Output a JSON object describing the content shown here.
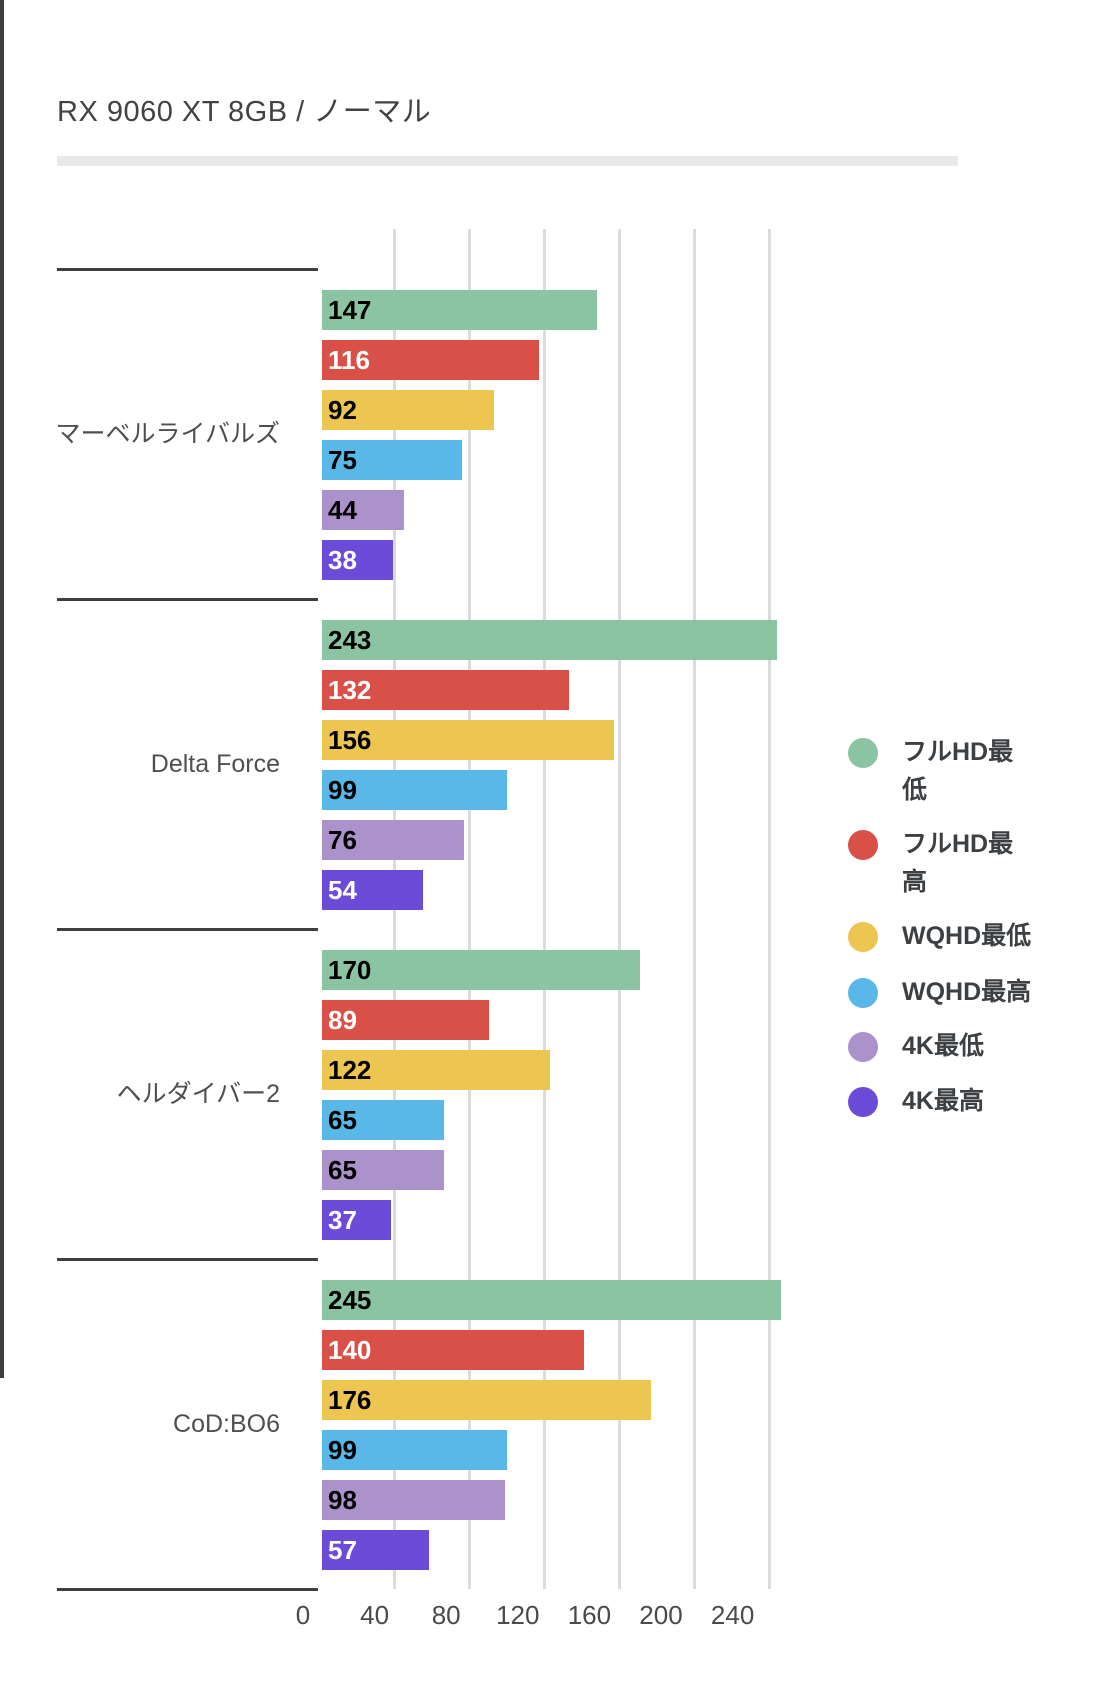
{
  "title": "RX 9060 XT 8GB / ノーマル",
  "chart_data": {
    "type": "bar",
    "orientation": "horizontal",
    "title": "RX 9060 XT 8GB / ノーマル",
    "categories": [
      "マーベルライバルズ",
      "Delta Force",
      "ヘルダイバー2",
      "CoD:BO6"
    ],
    "series": [
      {
        "name": "フルHD最低",
        "color": "#8BC4A3",
        "label_color": "#000000",
        "values": [
          147,
          243,
          170,
          245
        ]
      },
      {
        "name": "フルHD最高",
        "color": "#D95049",
        "label_color": "#FFFFFF",
        "values": [
          116,
          132,
          89,
          140
        ]
      },
      {
        "name": "WQHD最低",
        "color": "#EDC551",
        "label_color": "#000000",
        "values": [
          92,
          156,
          122,
          176
        ]
      },
      {
        "name": "WQHD最高",
        "color": "#5AB8E8",
        "label_color": "#000000",
        "values": [
          75,
          99,
          65,
          99
        ]
      },
      {
        "name": "4K最低",
        "color": "#AB92CB",
        "label_color": "#000000",
        "values": [
          44,
          76,
          65,
          98
        ]
      },
      {
        "name": "4K最高",
        "color": "#6B4BD8",
        "label_color": "#FFFFFF",
        "values": [
          38,
          54,
          37,
          57
        ]
      }
    ],
    "x_axis": {
      "ticks": [
        0,
        40,
        80,
        120,
        160,
        200,
        240
      ],
      "max": 247,
      "gridlines": true
    },
    "legend": {
      "position": "right",
      "items": [
        {
          "lines": [
            "フルHD最",
            "低"
          ]
        },
        {
          "lines": [
            "フルHD最",
            "高"
          ]
        },
        {
          "lines": [
            "WQHD最低"
          ]
        },
        {
          "lines": [
            "WQHD最高"
          ]
        },
        {
          "lines": [
            "4K最低"
          ]
        },
        {
          "lines": [
            "4K最高"
          ]
        }
      ]
    }
  }
}
